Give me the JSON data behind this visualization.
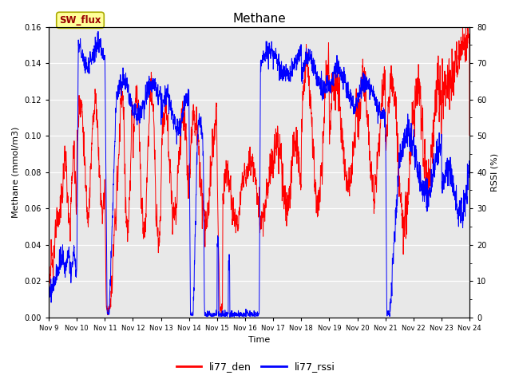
{
  "title": "Methane",
  "xlabel": "Time",
  "ylabel_left": "Methane (mmol/m3)",
  "ylabel_right": "RSSI (%)",
  "left_ylim": [
    0.0,
    0.16
  ],
  "right_ylim": [
    0,
    80
  ],
  "left_yticks": [
    0.0,
    0.02,
    0.04,
    0.06,
    0.08,
    0.1,
    0.12,
    0.14,
    0.16
  ],
  "right_yticks": [
    0,
    10,
    20,
    30,
    40,
    50,
    60,
    70,
    80
  ],
  "xtick_labels": [
    "Nov 9",
    "Nov 10",
    "Nov 11",
    "Nov 12",
    "Nov 13",
    "Nov 14",
    "Nov 15",
    "Nov 16",
    "Nov 17",
    "Nov 18",
    "Nov 19",
    "Nov 20",
    "Nov 21",
    "Nov 22",
    "Nov 23",
    "Nov 24"
  ],
  "sw_flux_label": "SW_flux",
  "line1_label": "li77_den",
  "line2_label": "li77_rssi",
  "line1_color": "#ff0000",
  "line2_color": "#0000ff",
  "bg_color": "#e8e8e8",
  "fig_bg_color": "#ffffff",
  "sw_flux_bg": "#ffff99",
  "sw_flux_border": "#aaaa00",
  "sw_flux_text_color": "#990000",
  "title_fontsize": 11,
  "axis_label_fontsize": 8,
  "tick_fontsize": 7,
  "legend_fontsize": 9
}
